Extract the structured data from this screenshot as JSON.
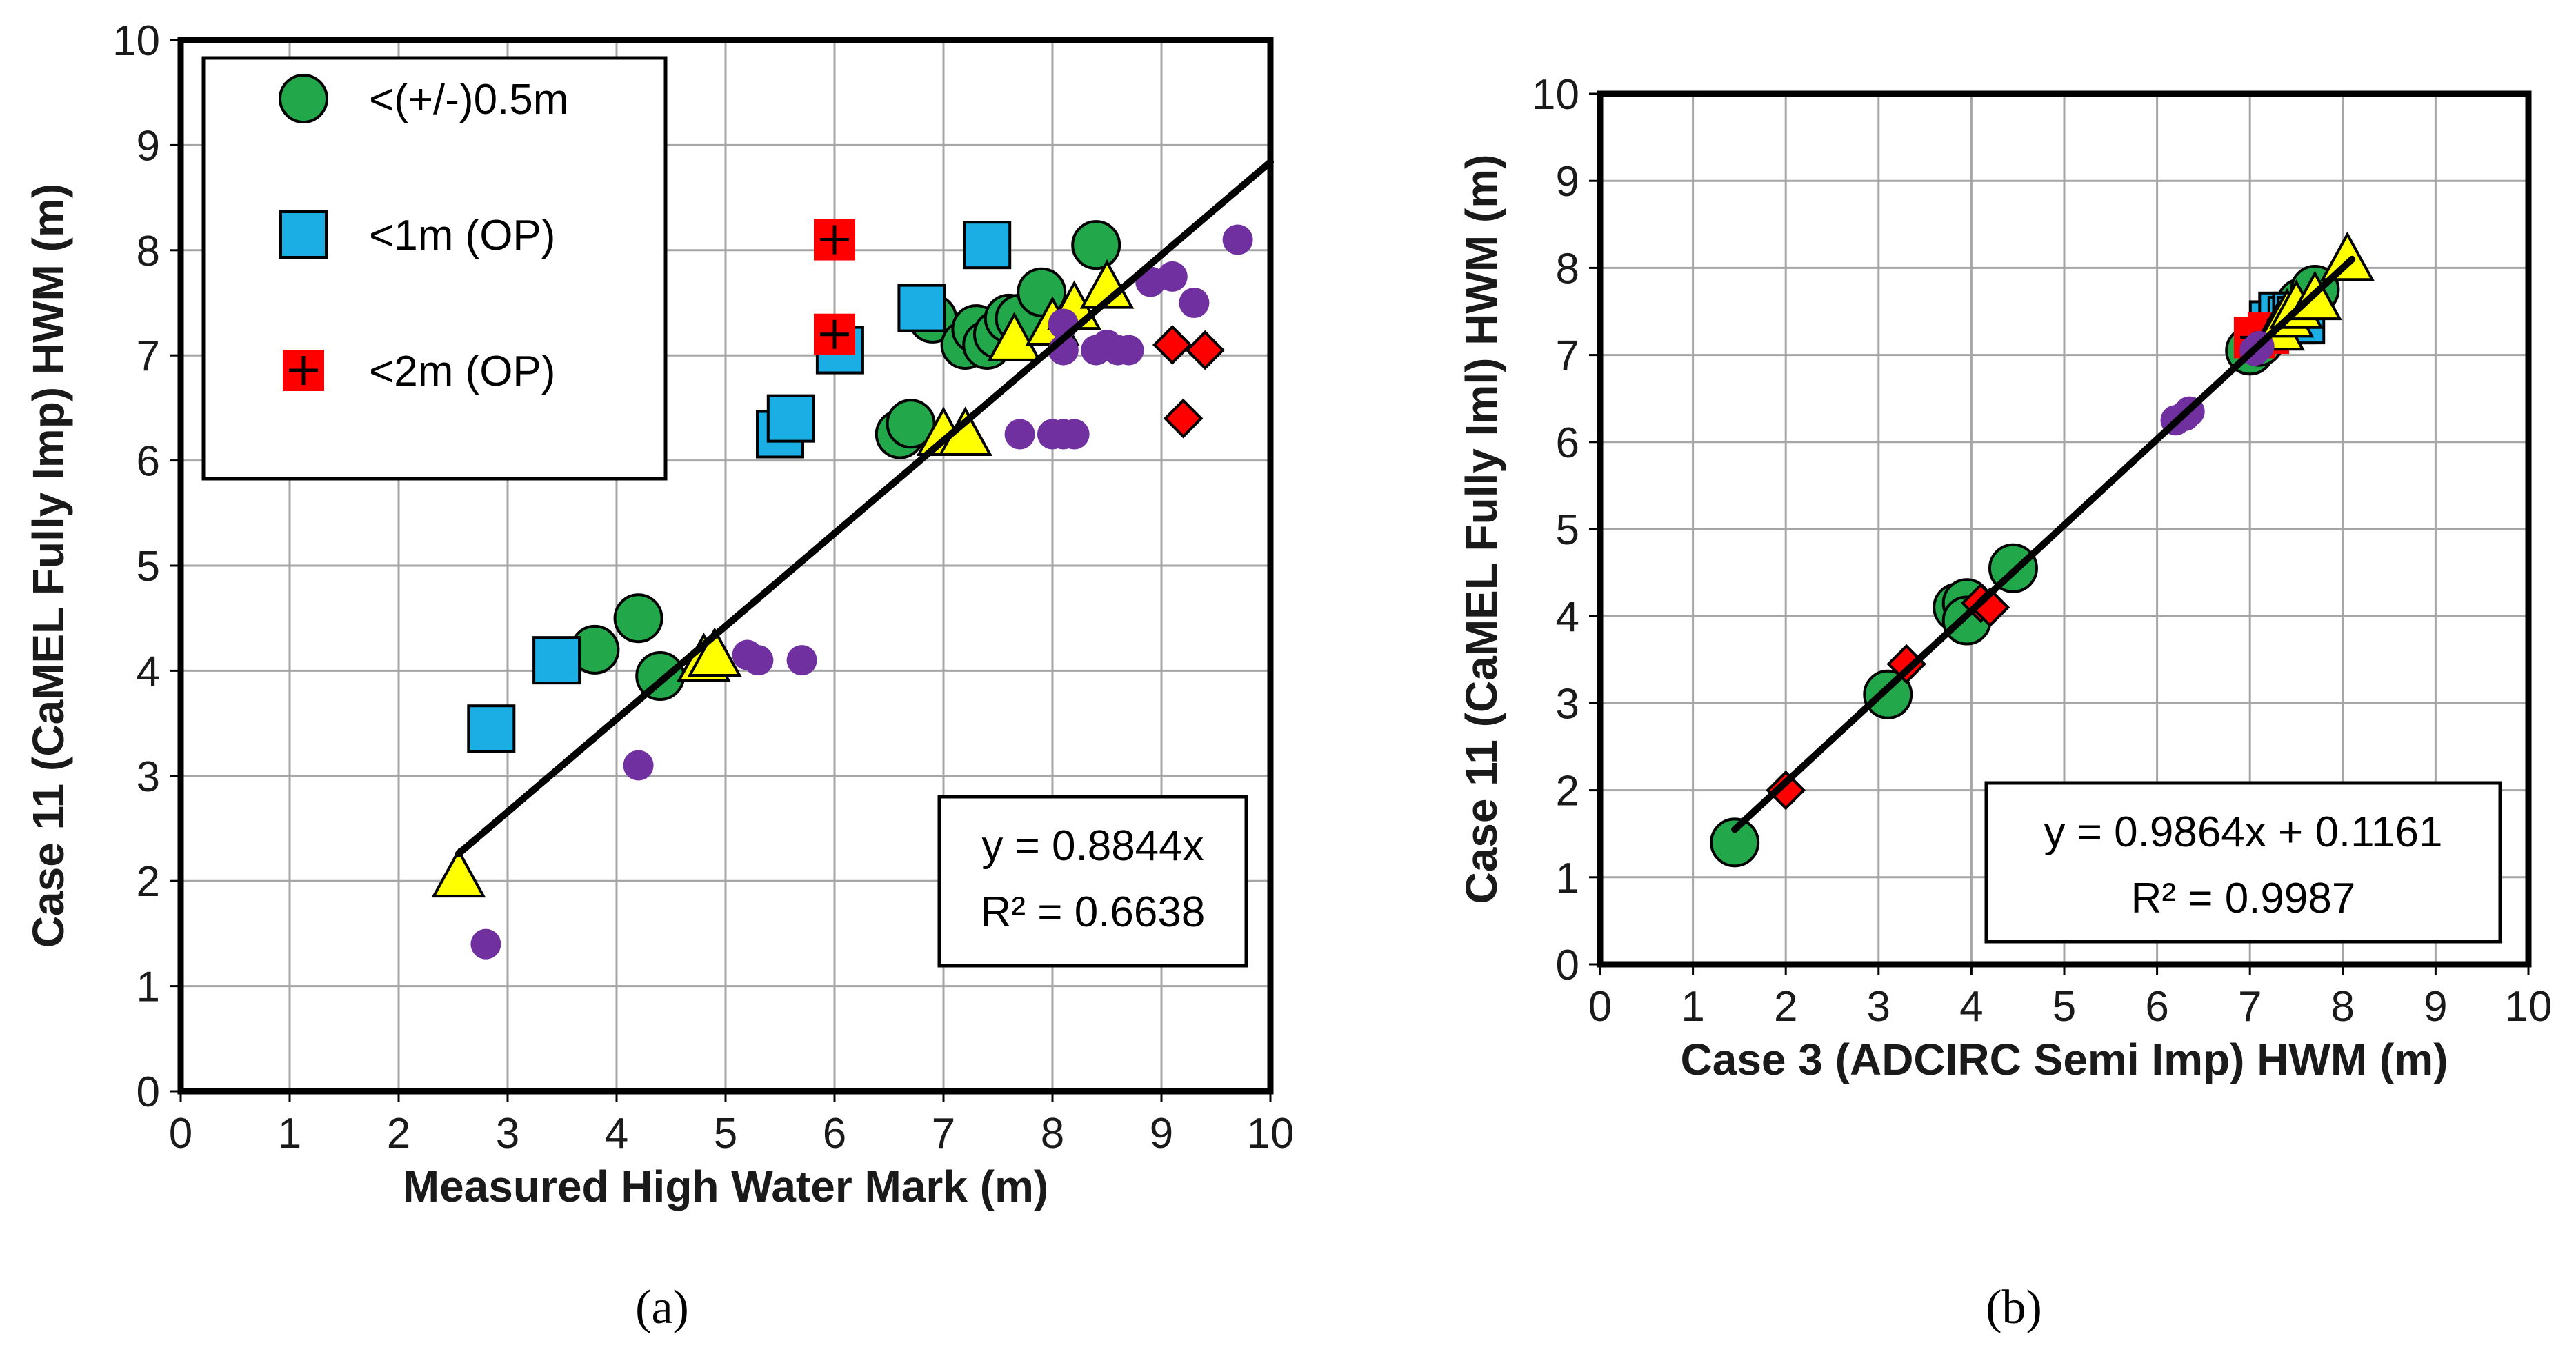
{
  "colors": {
    "within_0_5m": "#22a84a",
    "within_1m": "#1aaee5",
    "within_2m": "#ff0000",
    "yellow_series": "#ffff00",
    "purple_series": "#7030a0",
    "red_diamond_series": "#ff0000",
    "fit_line": "#000000"
  },
  "chart_data": [
    {
      "id": "a",
      "type": "scatter",
      "caption": "(a)",
      "xlabel": "Measured High Water Mark (m)",
      "ylabel": "Case 11 (CaMEL Fully Imp) HWM (m)",
      "xlim": [
        0,
        10
      ],
      "ylim": [
        0,
        10
      ],
      "xticks": [
        "0",
        "1",
        "2",
        "3",
        "4",
        "5",
        "6",
        "7",
        "8",
        "9",
        "10"
      ],
      "yticks": [
        "0",
        "1",
        "2",
        "3",
        "4",
        "5",
        "6",
        "7",
        "8",
        "9",
        "10"
      ],
      "grid": true,
      "legend": {
        "position": "top-left",
        "entries": [
          {
            "label": "<(+/-)0.5m",
            "marker": "circle",
            "color_key": "within_0_5m"
          },
          {
            "label": "<1m (OP)",
            "marker": "square",
            "color_key": "within_1m"
          },
          {
            "label": "<2m (OP)",
            "marker": "cross-square",
            "color_key": "within_2m"
          }
        ]
      },
      "trendline": {
        "x": [
          2.55,
          10.0
        ],
        "y": [
          2.26,
          8.84
        ],
        "equation": "y = 0.8844x",
        "r2": "R² = 0.6638",
        "label_position": "bottom-right"
      },
      "series": [
        {
          "name": "<(+/-)0.5m",
          "marker": "circle",
          "color_key": "within_0_5m",
          "x": [
            3.8,
            4.2,
            4.4,
            6.6,
            6.7,
            6.9,
            7.2,
            7.3,
            7.4,
            7.5,
            7.6,
            7.7,
            7.9,
            8.4
          ],
          "y": [
            4.2,
            4.5,
            3.95,
            6.25,
            6.35,
            7.35,
            7.1,
            7.25,
            7.1,
            7.2,
            7.35,
            7.35,
            7.6,
            8.05
          ]
        },
        {
          "name": "<1m (OP)",
          "marker": "square",
          "color_key": "within_1m",
          "x": [
            2.85,
            3.45,
            5.5,
            5.6,
            6.05,
            6.8,
            7.4
          ],
          "y": [
            3.45,
            4.1,
            6.25,
            6.4,
            7.05,
            7.45,
            8.05
          ]
        },
        {
          "name": "<2m (OP)",
          "marker": "cross-square",
          "color_key": "within_2m",
          "x": [
            6.0,
            6.0
          ],
          "y": [
            8.1,
            7.2
          ]
        },
        {
          "name": "Yellow triangles",
          "marker": "triangle",
          "color_key": "yellow_series",
          "x": [
            2.55,
            4.8,
            4.9,
            7.0,
            7.2,
            7.65,
            8.0,
            8.2,
            8.5
          ],
          "y": [
            2.05,
            4.1,
            4.15,
            6.25,
            6.25,
            7.15,
            7.3,
            7.45,
            7.65
          ]
        },
        {
          "name": "Purple dots",
          "marker": "dot",
          "color_key": "purple_series",
          "x": [
            2.8,
            4.2,
            5.2,
            5.3,
            5.7,
            7.7,
            8.0,
            8.1,
            8.1,
            8.2,
            8.1,
            8.4,
            8.5,
            8.6,
            8.7,
            8.9,
            9.1,
            9.3,
            9.7
          ],
          "y": [
            1.4,
            3.1,
            4.15,
            4.1,
            4.1,
            6.25,
            6.25,
            6.25,
            7.05,
            6.25,
            7.3,
            7.05,
            7.1,
            7.05,
            7.05,
            7.7,
            7.75,
            7.5,
            8.1
          ]
        },
        {
          "name": "Red diamonds",
          "marker": "diamond",
          "color_key": "red_diamond_series",
          "x": [
            9.1,
            9.4,
            9.2
          ],
          "y": [
            7.1,
            7.05,
            6.4
          ]
        }
      ]
    },
    {
      "id": "b",
      "type": "scatter",
      "caption": "(b)",
      "xlabel": "Case 3 (ADCIRC Semi Imp) HWM (m)",
      "ylabel": "Case 11 (CaMEL Fully Iml) HWM (m)",
      "xlim": [
        0,
        10
      ],
      "ylim": [
        0,
        10
      ],
      "xticks": [
        "0",
        "1",
        "2",
        "3",
        "4",
        "5",
        "6",
        "7",
        "8",
        "9",
        "10"
      ],
      "yticks": [
        "0",
        "1",
        "2",
        "3",
        "4",
        "5",
        "6",
        "7",
        "8",
        "9",
        "10"
      ],
      "grid": true,
      "trendline": {
        "x": [
          1.45,
          8.1
        ],
        "y": [
          1.55,
          8.1
        ],
        "equation": "y = 0.9864x + 0.1161",
        "r2": "R² = 0.9987",
        "label_position": "bottom-right"
      },
      "series": [
        {
          "name": "<(+/-)0.5m",
          "marker": "circle",
          "color_key": "within_0_5m",
          "x": [
            1.45,
            3.1,
            3.85,
            3.95,
            3.95,
            4.45,
            7.0,
            7.1,
            7.55,
            7.7
          ],
          "y": [
            1.4,
            3.1,
            4.1,
            4.15,
            3.95,
            4.55,
            7.05,
            7.15,
            7.6,
            7.75
          ]
        },
        {
          "name": "<1m (OP)",
          "marker": "square",
          "color_key": "within_1m",
          "x": [
            7.25,
            7.35,
            7.45,
            7.5,
            7.55
          ],
          "y": [
            7.35,
            7.45,
            7.4,
            7.45,
            7.4
          ]
        },
        {
          "name": "<2m (OP)",
          "marker": "cross-square",
          "color_key": "within_2m",
          "x": [
            7.05,
            7.2
          ],
          "y": [
            7.2,
            7.25
          ]
        },
        {
          "name": "Yellow triangles",
          "marker": "triangle",
          "color_key": "yellow_series",
          "x": [
            7.3,
            7.4,
            7.5,
            7.7,
            8.05
          ],
          "y": [
            7.3,
            7.45,
            7.55,
            7.65,
            8.1
          ]
        },
        {
          "name": "Purple dots",
          "marker": "dot",
          "color_key": "purple_series",
          "x": [
            6.2,
            6.3,
            6.35,
            7.05,
            7.1
          ],
          "y": [
            6.25,
            6.3,
            6.35,
            7.05,
            7.1
          ]
        },
        {
          "name": "Red diamonds",
          "marker": "diamond",
          "color_key": "red_diamond_series",
          "x": [
            2.0,
            3.3,
            4.1,
            4.2
          ],
          "y": [
            2.0,
            3.45,
            4.15,
            4.1
          ]
        }
      ]
    }
  ]
}
